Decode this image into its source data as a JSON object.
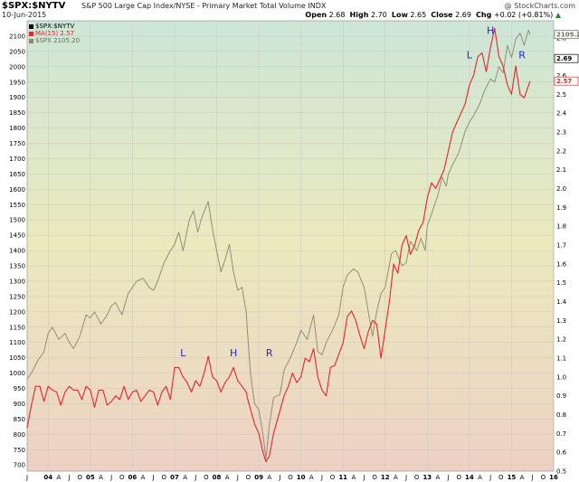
{
  "header": {
    "symbol": "$SPX:$NYTV",
    "description": "S&P 500 Large Cap Index/NYSE - Primary Market Total Volume  INDX",
    "date": "10-Jun-2015",
    "watermark": "@ StockCharts.com",
    "open_label": "Open",
    "open_value": "2.68",
    "high_label": "High",
    "high_value": "2.70",
    "low_label": "Low",
    "low_value": "2.65",
    "close_label": "Close",
    "close_value": "2.69",
    "chg_label": "Chg",
    "chg_value": "+0.02 (+0.81%)",
    "chg_arrow": "▲"
  },
  "legend": [
    {
      "label": "$SPX:$NYTV",
      "color": "#000000"
    },
    {
      "label": "MA(15) 2.57",
      "color": "#e8242b"
    },
    {
      "label": "$SPX 2105.20",
      "color": "#8a8a70"
    }
  ],
  "colors": {
    "ratio": "#e8242b",
    "spx": "#8f8f78",
    "bg_top": "#cde6d7",
    "bg_mid": "#ece9bd",
    "bg_bottom": "#edd1c4",
    "annot": "#1b2bd0",
    "axis_text": "#000000"
  },
  "chart_data": {
    "type": "line",
    "x_range": [
      2003.5,
      2016.0
    ],
    "left_axis": {
      "range": [
        680,
        2150
      ],
      "ticks": [
        700,
        750,
        800,
        850,
        900,
        950,
        1000,
        1050,
        1100,
        1150,
        1200,
        1250,
        1300,
        1350,
        1400,
        1450,
        1500,
        1550,
        1600,
        1650,
        1700,
        1750,
        1800,
        1850,
        1900,
        1950,
        2000,
        2050,
        2100
      ]
    },
    "right_axis": {
      "range": [
        0.5,
        2.89
      ],
      "ticks": [
        0.5,
        0.6,
        0.7,
        0.8,
        0.9,
        1.0,
        1.1,
        1.2,
        1.3,
        1.4,
        1.5,
        1.6,
        1.7,
        1.8,
        1.9,
        2.0,
        2.1,
        2.2,
        2.3,
        2.4,
        2.5,
        2.6,
        2.7,
        2.8
      ]
    },
    "right_markers": [
      {
        "text": "2105.2",
        "value": 2105.2,
        "axis": "left",
        "color": "#6b6b55"
      },
      {
        "text": "2.69",
        "value": 2.69,
        "axis": "right",
        "color": "#000000"
      },
      {
        "text": "2.57",
        "value": 2.57,
        "axis": "right",
        "color": "#e8242b"
      }
    ],
    "x_ticks": [
      {
        "t": 2003.5,
        "label": "J"
      },
      {
        "t": 2004.0,
        "label": "04"
      },
      {
        "t": 2004.25,
        "label": "A"
      },
      {
        "t": 2004.5,
        "label": "J"
      },
      {
        "t": 2004.75,
        "label": "O"
      },
      {
        "t": 2005.0,
        "label": "05"
      },
      {
        "t": 2005.25,
        "label": "A"
      },
      {
        "t": 2005.5,
        "label": "J"
      },
      {
        "t": 2005.75,
        "label": "O"
      },
      {
        "t": 2006.0,
        "label": "06"
      },
      {
        "t": 2006.25,
        "label": "A"
      },
      {
        "t": 2006.5,
        "label": "J"
      },
      {
        "t": 2006.75,
        "label": "O"
      },
      {
        "t": 2007.0,
        "label": "07"
      },
      {
        "t": 2007.25,
        "label": "A"
      },
      {
        "t": 2007.5,
        "label": "J"
      },
      {
        "t": 2007.75,
        "label": "O"
      },
      {
        "t": 2008.0,
        "label": "08"
      },
      {
        "t": 2008.25,
        "label": "A"
      },
      {
        "t": 2008.5,
        "label": "J"
      },
      {
        "t": 2008.75,
        "label": "O"
      },
      {
        "t": 2009.0,
        "label": "09"
      },
      {
        "t": 2009.25,
        "label": "A"
      },
      {
        "t": 2009.5,
        "label": "J"
      },
      {
        "t": 2009.75,
        "label": "O"
      },
      {
        "t": 2010.0,
        "label": "10"
      },
      {
        "t": 2010.25,
        "label": "A"
      },
      {
        "t": 2010.5,
        "label": "J"
      },
      {
        "t": 2010.75,
        "label": "O"
      },
      {
        "t": 2011.0,
        "label": "11"
      },
      {
        "t": 2011.25,
        "label": "A"
      },
      {
        "t": 2011.5,
        "label": "J"
      },
      {
        "t": 2011.75,
        "label": "O"
      },
      {
        "t": 2012.0,
        "label": "12"
      },
      {
        "t": 2012.25,
        "label": "A"
      },
      {
        "t": 2012.5,
        "label": "J"
      },
      {
        "t": 2012.75,
        "label": "O"
      },
      {
        "t": 2013.0,
        "label": "13"
      },
      {
        "t": 2013.25,
        "label": "A"
      },
      {
        "t": 2013.5,
        "label": "J"
      },
      {
        "t": 2013.75,
        "label": "O"
      },
      {
        "t": 2014.0,
        "label": "14"
      },
      {
        "t": 2014.25,
        "label": "A"
      },
      {
        "t": 2014.5,
        "label": "J"
      },
      {
        "t": 2014.75,
        "label": "O"
      },
      {
        "t": 2015.0,
        "label": "15"
      },
      {
        "t": 2015.25,
        "label": "A"
      },
      {
        "t": 2015.5,
        "label": "J"
      },
      {
        "t": 2015.75,
        "label": "O"
      },
      {
        "t": 2016.0,
        "label": "16"
      }
    ],
    "series": [
      {
        "name": "$SPX 2105.20",
        "axis": "left",
        "x": [
          2003.5,
          2003.6,
          2003.75,
          2003.9,
          2004.0,
          2004.1,
          2004.25,
          2004.4,
          2004.5,
          2004.6,
          2004.75,
          2004.9,
          2005.0,
          2005.1,
          2005.25,
          2005.4,
          2005.5,
          2005.6,
          2005.75,
          2005.9,
          2006.0,
          2006.1,
          2006.25,
          2006.4,
          2006.5,
          2006.6,
          2006.75,
          2006.9,
          2007.0,
          2007.1,
          2007.2,
          2007.35,
          2007.45,
          2007.55,
          2007.65,
          2007.8,
          2007.9,
          2008.0,
          2008.1,
          2008.2,
          2008.3,
          2008.4,
          2008.5,
          2008.6,
          2008.7,
          2008.75,
          2008.8,
          2008.9,
          2009.0,
          2009.1,
          2009.17,
          2009.25,
          2009.35,
          2009.5,
          2009.6,
          2009.75,
          2009.9,
          2010.0,
          2010.15,
          2010.3,
          2010.4,
          2010.5,
          2010.6,
          2010.75,
          2010.9,
          2011.0,
          2011.1,
          2011.25,
          2011.35,
          2011.5,
          2011.6,
          2011.7,
          2011.8,
          2011.9,
          2012.0,
          2012.15,
          2012.25,
          2012.4,
          2012.5,
          2012.6,
          2012.75,
          2012.85,
          2012.95,
          2013.0,
          2013.1,
          2013.25,
          2013.35,
          2013.45,
          2013.5,
          2013.6,
          2013.75,
          2013.9,
          2014.0,
          2014.1,
          2014.25,
          2014.35,
          2014.5,
          2014.6,
          2014.7,
          2014.8,
          2014.9,
          2015.0,
          2015.1,
          2015.2,
          2015.3,
          2015.4,
          2015.44
        ],
        "values": [
          980,
          1000,
          1040,
          1070,
          1130,
          1150,
          1110,
          1130,
          1100,
          1080,
          1120,
          1190,
          1180,
          1200,
          1160,
          1190,
          1220,
          1230,
          1190,
          1260,
          1280,
          1300,
          1310,
          1280,
          1270,
          1300,
          1360,
          1400,
          1420,
          1460,
          1400,
          1500,
          1530,
          1460,
          1510,
          1560,
          1470,
          1400,
          1330,
          1370,
          1420,
          1330,
          1270,
          1280,
          1200,
          1100,
          1000,
          900,
          880,
          800,
          720,
          830,
          920,
          930,
          1010,
          1050,
          1100,
          1140,
          1110,
          1190,
          1070,
          1060,
          1100,
          1140,
          1190,
          1280,
          1320,
          1340,
          1330,
          1280,
          1200,
          1120,
          1200,
          1260,
          1280,
          1390,
          1400,
          1350,
          1360,
          1430,
          1400,
          1440,
          1400,
          1480,
          1520,
          1580,
          1640,
          1610,
          1650,
          1680,
          1720,
          1790,
          1820,
          1840,
          1880,
          1920,
          1960,
          1950,
          2000,
          1980,
          2070,
          2030,
          2090,
          2110,
          2070,
          2120,
          2105
        ]
      },
      {
        "name": "MA(15) 2.57",
        "axis": "right",
        "x": [
          2003.5,
          2003.6,
          2003.7,
          2003.8,
          2003.9,
          2004.0,
          2004.1,
          2004.2,
          2004.3,
          2004.4,
          2004.5,
          2004.6,
          2004.7,
          2004.8,
          2004.9,
          2005.0,
          2005.1,
          2005.2,
          2005.3,
          2005.4,
          2005.5,
          2005.6,
          2005.7,
          2005.8,
          2005.9,
          2006.0,
          2006.1,
          2006.2,
          2006.3,
          2006.4,
          2006.5,
          2006.6,
          2006.7,
          2006.8,
          2006.9,
          2007.0,
          2007.1,
          2007.2,
          2007.3,
          2007.4,
          2007.5,
          2007.6,
          2007.7,
          2007.8,
          2007.9,
          2008.0,
          2008.1,
          2008.2,
          2008.3,
          2008.4,
          2008.5,
          2008.6,
          2008.7,
          2008.75,
          2008.8,
          2008.9,
          2009.0,
          2009.1,
          2009.17,
          2009.25,
          2009.35,
          2009.5,
          2009.6,
          2009.7,
          2009.8,
          2009.9,
          2010.0,
          2010.1,
          2010.2,
          2010.3,
          2010.4,
          2010.5,
          2010.6,
          2010.7,
          2010.8,
          2010.9,
          2011.0,
          2011.1,
          2011.2,
          2011.3,
          2011.4,
          2011.5,
          2011.6,
          2011.7,
          2011.8,
          2011.9,
          2012.0,
          2012.1,
          2012.2,
          2012.3,
          2012.4,
          2012.5,
          2012.6,
          2012.7,
          2012.8,
          2012.9,
          2013.0,
          2013.1,
          2013.2,
          2013.3,
          2013.4,
          2013.5,
          2013.6,
          2013.7,
          2013.8,
          2013.9,
          2014.0,
          2014.1,
          2014.2,
          2014.3,
          2014.4,
          2014.5,
          2014.6,
          2014.7,
          2014.8,
          2014.9,
          2015.0,
          2015.1,
          2015.2,
          2015.3,
          2015.44
        ],
        "values": [
          0.73,
          0.85,
          0.95,
          0.95,
          0.87,
          0.95,
          0.93,
          0.92,
          0.85,
          0.92,
          0.95,
          0.93,
          0.93,
          0.88,
          0.95,
          0.93,
          0.84,
          0.93,
          0.93,
          0.85,
          0.87,
          0.9,
          0.88,
          0.95,
          0.88,
          0.92,
          0.93,
          0.87,
          0.9,
          0.93,
          0.92,
          0.85,
          0.92,
          0.95,
          0.88,
          1.05,
          1.05,
          1.0,
          0.97,
          0.92,
          0.98,
          0.95,
          1.02,
          1.11,
          1.0,
          0.98,
          0.92,
          0.97,
          1.0,
          1.05,
          0.98,
          0.95,
          0.92,
          0.87,
          0.83,
          0.75,
          0.7,
          0.6,
          0.55,
          0.58,
          0.7,
          0.82,
          0.9,
          0.95,
          1.02,
          0.97,
          1.0,
          1.1,
          1.08,
          1.15,
          1.0,
          0.93,
          0.9,
          1.05,
          1.06,
          1.12,
          1.18,
          1.32,
          1.35,
          1.3,
          1.22,
          1.15,
          1.24,
          1.3,
          1.28,
          1.1,
          1.25,
          1.4,
          1.6,
          1.55,
          1.7,
          1.75,
          1.65,
          1.7,
          1.78,
          1.82,
          1.95,
          2.03,
          2.0,
          2.05,
          2.1,
          2.2,
          2.3,
          2.35,
          2.4,
          2.45,
          2.55,
          2.6,
          2.7,
          2.72,
          2.62,
          2.75,
          2.85,
          2.7,
          2.65,
          2.55,
          2.5,
          2.65,
          2.5,
          2.48,
          2.57
        ]
      }
    ],
    "annotations": [
      {
        "text": "L",
        "t": 2007.2,
        "v": 1.11
      },
      {
        "text": "H",
        "t": 2008.4,
        "v": 1.11
      },
      {
        "text": "R",
        "t": 2009.25,
        "v": 1.11
      },
      {
        "text": "L",
        "t": 2014.0,
        "v": 2.69
      },
      {
        "text": "H",
        "t": 2014.5,
        "v": 2.82
      },
      {
        "text": "R",
        "t": 2015.25,
        "v": 2.69
      }
    ]
  }
}
